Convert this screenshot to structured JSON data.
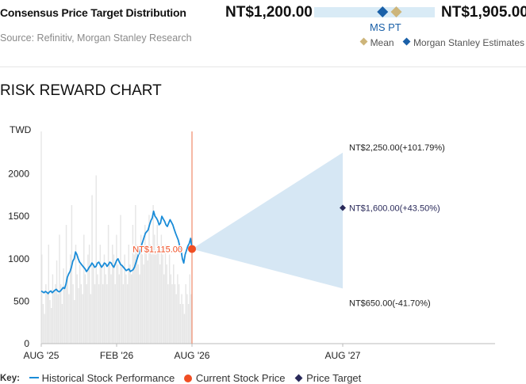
{
  "consensus": {
    "title": "Consensus Price Target Distribution",
    "source": "Source: Refinitiv, Morgan Stanley Research",
    "low_label": "NT$1,200.00",
    "high_label": "NT$1,905.00",
    "ms_pt_label": "MS PT",
    "legend": [
      {
        "label": "Mean",
        "color": "#cdb57a"
      },
      {
        "label": "Morgan Stanley Estimates",
        "color": "#1a60a8"
      }
    ]
  },
  "risk_reward": {
    "title": "RISK REWARD CHART",
    "key_title": "Key:",
    "key_items": [
      {
        "label": "Historical Stock Performance",
        "color": "#1a8cd8",
        "icon": "line-icon"
      },
      {
        "label": "Current Stock Price",
        "color": "#f04e23",
        "icon": "dot-icon"
      },
      {
        "label": "Price Target",
        "color": "#2a2a5a",
        "icon": "diamond-icon"
      }
    ]
  },
  "chart_data": [
    {
      "type": "range",
      "title": "Consensus Price Target Distribution",
      "min": 1200,
      "max": 1905,
      "mean": 1680,
      "ms_pt": 1600,
      "unit": "NT$"
    },
    {
      "type": "line",
      "title": "RISK REWARD CHART",
      "ylabel": "TWD",
      "ylim": [
        0,
        2500
      ],
      "yticks": [
        0,
        500,
        1000,
        1500,
        2000
      ],
      "xticks": [
        "AUG '25",
        "FEB '26",
        "AUG '26",
        "AUG '27"
      ],
      "colors": {
        "line": "#1a8cd8",
        "current": "#f04e23",
        "target": "#2a2a5a",
        "fan": "#d6e7f4",
        "volume": "#e6e6e6"
      },
      "current_price": {
        "value": 1115,
        "label": "NT$1,115.00"
      },
      "targets": [
        {
          "scenario": "bull",
          "value": 2250,
          "label": "NT$2,250.00(+101.79%)"
        },
        {
          "scenario": "base",
          "value": 1600,
          "label": "NT$1,600.00(+43.50%)"
        },
        {
          "scenario": "bear",
          "value": 650,
          "label": "NT$650.00(-41.70%)"
        }
      ],
      "series": [
        {
          "values": [
            620,
            610,
            600,
            615,
            605,
            590,
            610,
            620,
            600,
            615,
            630,
            640,
            620,
            610,
            620,
            640,
            660,
            650,
            700,
            780,
            820,
            850,
            900,
            970,
            1000,
            1080,
            1050,
            1000,
            960,
            940,
            920,
            900,
            880,
            850,
            870,
            900,
            920,
            950,
            930,
            900,
            910,
            950,
            960,
            930,
            900,
            920,
            950,
            940,
            910,
            930,
            960,
            950,
            920,
            900,
            940,
            980,
            1000,
            960,
            930,
            920,
            900,
            880,
            860,
            870,
            880,
            850,
            860,
            870,
            900,
            950,
            1000,
            1050,
            1080,
            1150,
            1200,
            1250,
            1300,
            1320,
            1340,
            1400,
            1450,
            1480,
            1560,
            1500,
            1480,
            1450,
            1400,
            1420,
            1500,
            1470,
            1440,
            1400,
            1380,
            1420,
            1460,
            1430,
            1400,
            1350,
            1300,
            1260,
            1220,
            1150,
            1100,
            1000,
            950,
            1050,
            1100,
            1150,
            1180,
            1240,
            1115
          ]
        }
      ],
      "volume": [
        0.45,
        0.2,
        0.15,
        0.3,
        0.25,
        0.5,
        0.22,
        0.18,
        0.35,
        0.27,
        0.3,
        0.42,
        0.25,
        0.55,
        0.3,
        0.2,
        0.38,
        0.28,
        0.6,
        0.33,
        0.25,
        0.45,
        0.7,
        0.3,
        0.22,
        0.5,
        0.35,
        0.28,
        0.4,
        0.3,
        0.25,
        0.55,
        0.35,
        0.3,
        0.45,
        0.5,
        0.25,
        0.75,
        0.4,
        0.3,
        0.85,
        0.35,
        0.3,
        0.5,
        0.4,
        0.3,
        0.45,
        0.35,
        0.3,
        0.6,
        0.4,
        0.35,
        0.5,
        0.45,
        0.3,
        0.55,
        0.4,
        0.35,
        0.65,
        0.4,
        0.3,
        0.45,
        0.35,
        0.3,
        0.5,
        0.4,
        0.35,
        0.6,
        0.45,
        0.7,
        0.5,
        0.4,
        0.35,
        0.55,
        0.45,
        0.4,
        0.6,
        0.5,
        0.42,
        0.65,
        0.5,
        0.45,
        0.7,
        0.55,
        0.45,
        0.6,
        0.5,
        0.4,
        0.55,
        0.45,
        0.35,
        0.5,
        0.4,
        0.3,
        0.45,
        0.35,
        0.3,
        0.4,
        0.3,
        0.25,
        0.35,
        0.3,
        0.2,
        0.25,
        0.2,
        0.15,
        0.3,
        0.25,
        0.2,
        0.35,
        0.25
      ]
    }
  ]
}
